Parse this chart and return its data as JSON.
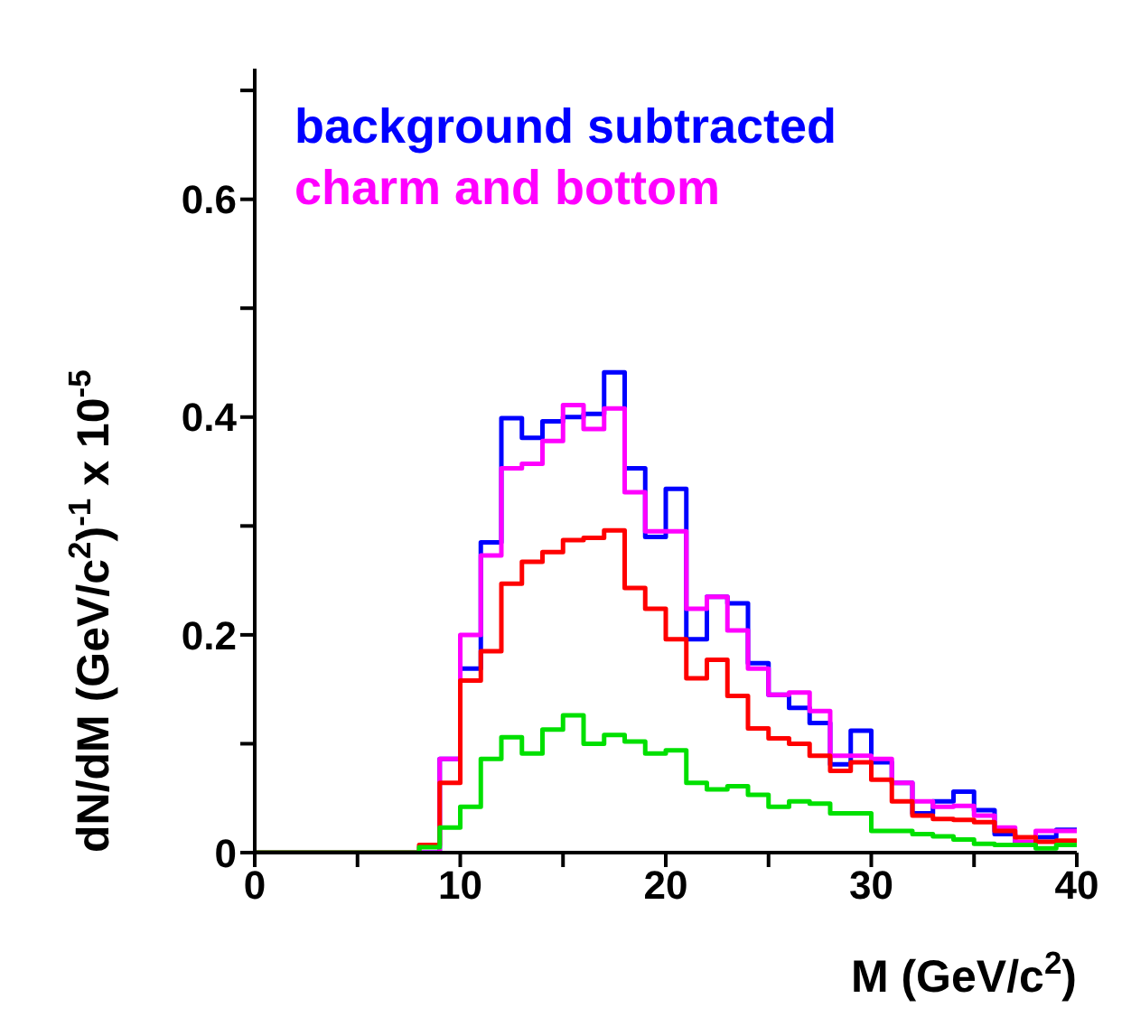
{
  "chart_data": {
    "type": "histogram",
    "xlabel": "M (GeV/c$^{2}$)",
    "ylabel": "dN/dM (GeV/c$^{2}$)$^{-1}$ x 10$^{-5}$",
    "bins": [
      0,
      1,
      2,
      3,
      4,
      5,
      6,
      7,
      8,
      9,
      10,
      11,
      12,
      13,
      14,
      15,
      16,
      17,
      18,
      19,
      20,
      21,
      22,
      23,
      24,
      25,
      26,
      27,
      28,
      29,
      30,
      31,
      32,
      33,
      34,
      35,
      36,
      37,
      38,
      39,
      40
    ],
    "series": [
      {
        "name": "background subtracted",
        "color": "#0000ff",
        "values": [
          0,
          0,
          0,
          0,
          0,
          0,
          0,
          0,
          0,
          0.086,
          0.169,
          0.285,
          0.399,
          0.381,
          0.396,
          0.4,
          0.403,
          0.441,
          0.353,
          0.29,
          0.334,
          0.196,
          0.235,
          0.229,
          0.174,
          0.145,
          0.133,
          0.119,
          0.081,
          0.112,
          0.083,
          0.064,
          0.036,
          0.047,
          0.056,
          0.039,
          0.017,
          0.008,
          0.014,
          0.021
        ]
      },
      {
        "name": "charm and bottom",
        "color": "#ff00ff",
        "values": [
          0,
          0,
          0,
          0,
          0,
          0,
          0,
          0,
          0,
          0.086,
          0.2,
          0.273,
          0.353,
          0.357,
          0.378,
          0.411,
          0.389,
          0.408,
          0.331,
          0.295,
          0.295,
          0.224,
          0.235,
          0.204,
          0.169,
          0.145,
          0.147,
          0.13,
          0.089,
          0.089,
          0.086,
          0.064,
          0.047,
          0.042,
          0.043,
          0.034,
          0.023,
          0.01,
          0.02,
          0.02
        ]
      },
      {
        "color": "#ff0000",
        "values": [
          0,
          0,
          0,
          0,
          0,
          0,
          0,
          0,
          0.007,
          0.064,
          0.158,
          0.185,
          0.247,
          0.267,
          0.276,
          0.287,
          0.289,
          0.296,
          0.243,
          0.224,
          0.196,
          0.16,
          0.177,
          0.144,
          0.114,
          0.105,
          0.1,
          0.089,
          0.075,
          0.083,
          0.067,
          0.047,
          0.034,
          0.031,
          0.03,
          0.028,
          0.02,
          0.014,
          0.01,
          0.011
        ]
      },
      {
        "color": "#00e000",
        "values": [
          0,
          0,
          0,
          0,
          0,
          0,
          0,
          0,
          0.005,
          0.023,
          0.042,
          0.086,
          0.106,
          0.091,
          0.113,
          0.126,
          0.1,
          0.108,
          0.102,
          0.091,
          0.094,
          0.064,
          0.058,
          0.061,
          0.053,
          0.042,
          0.047,
          0.045,
          0.036,
          0.036,
          0.02,
          0.02,
          0.017,
          0.015,
          0.012,
          0.008,
          0.007,
          0.007,
          0.004,
          0.007
        ]
      }
    ],
    "xlim": [
      0,
      40
    ],
    "xticks": [
      0,
      {
        "value": 5,
        "label": null
      },
      10,
      {
        "value": 15,
        "label": null
      },
      20,
      {
        "value": 25,
        "label": null
      },
      30,
      {
        "value": 35,
        "label": null
      },
      40
    ],
    "ylim": [
      0,
      0.72
    ],
    "yticks": [
      0,
      {
        "value": 0.1,
        "label": null
      },
      0.2,
      {
        "value": 0.3,
        "label": null
      },
      0.4,
      {
        "value": 0.5,
        "label": null
      },
      0.6,
      {
        "value": 0.7,
        "label": null
      }
    ],
    "legend": "top left",
    "grid": false
  }
}
